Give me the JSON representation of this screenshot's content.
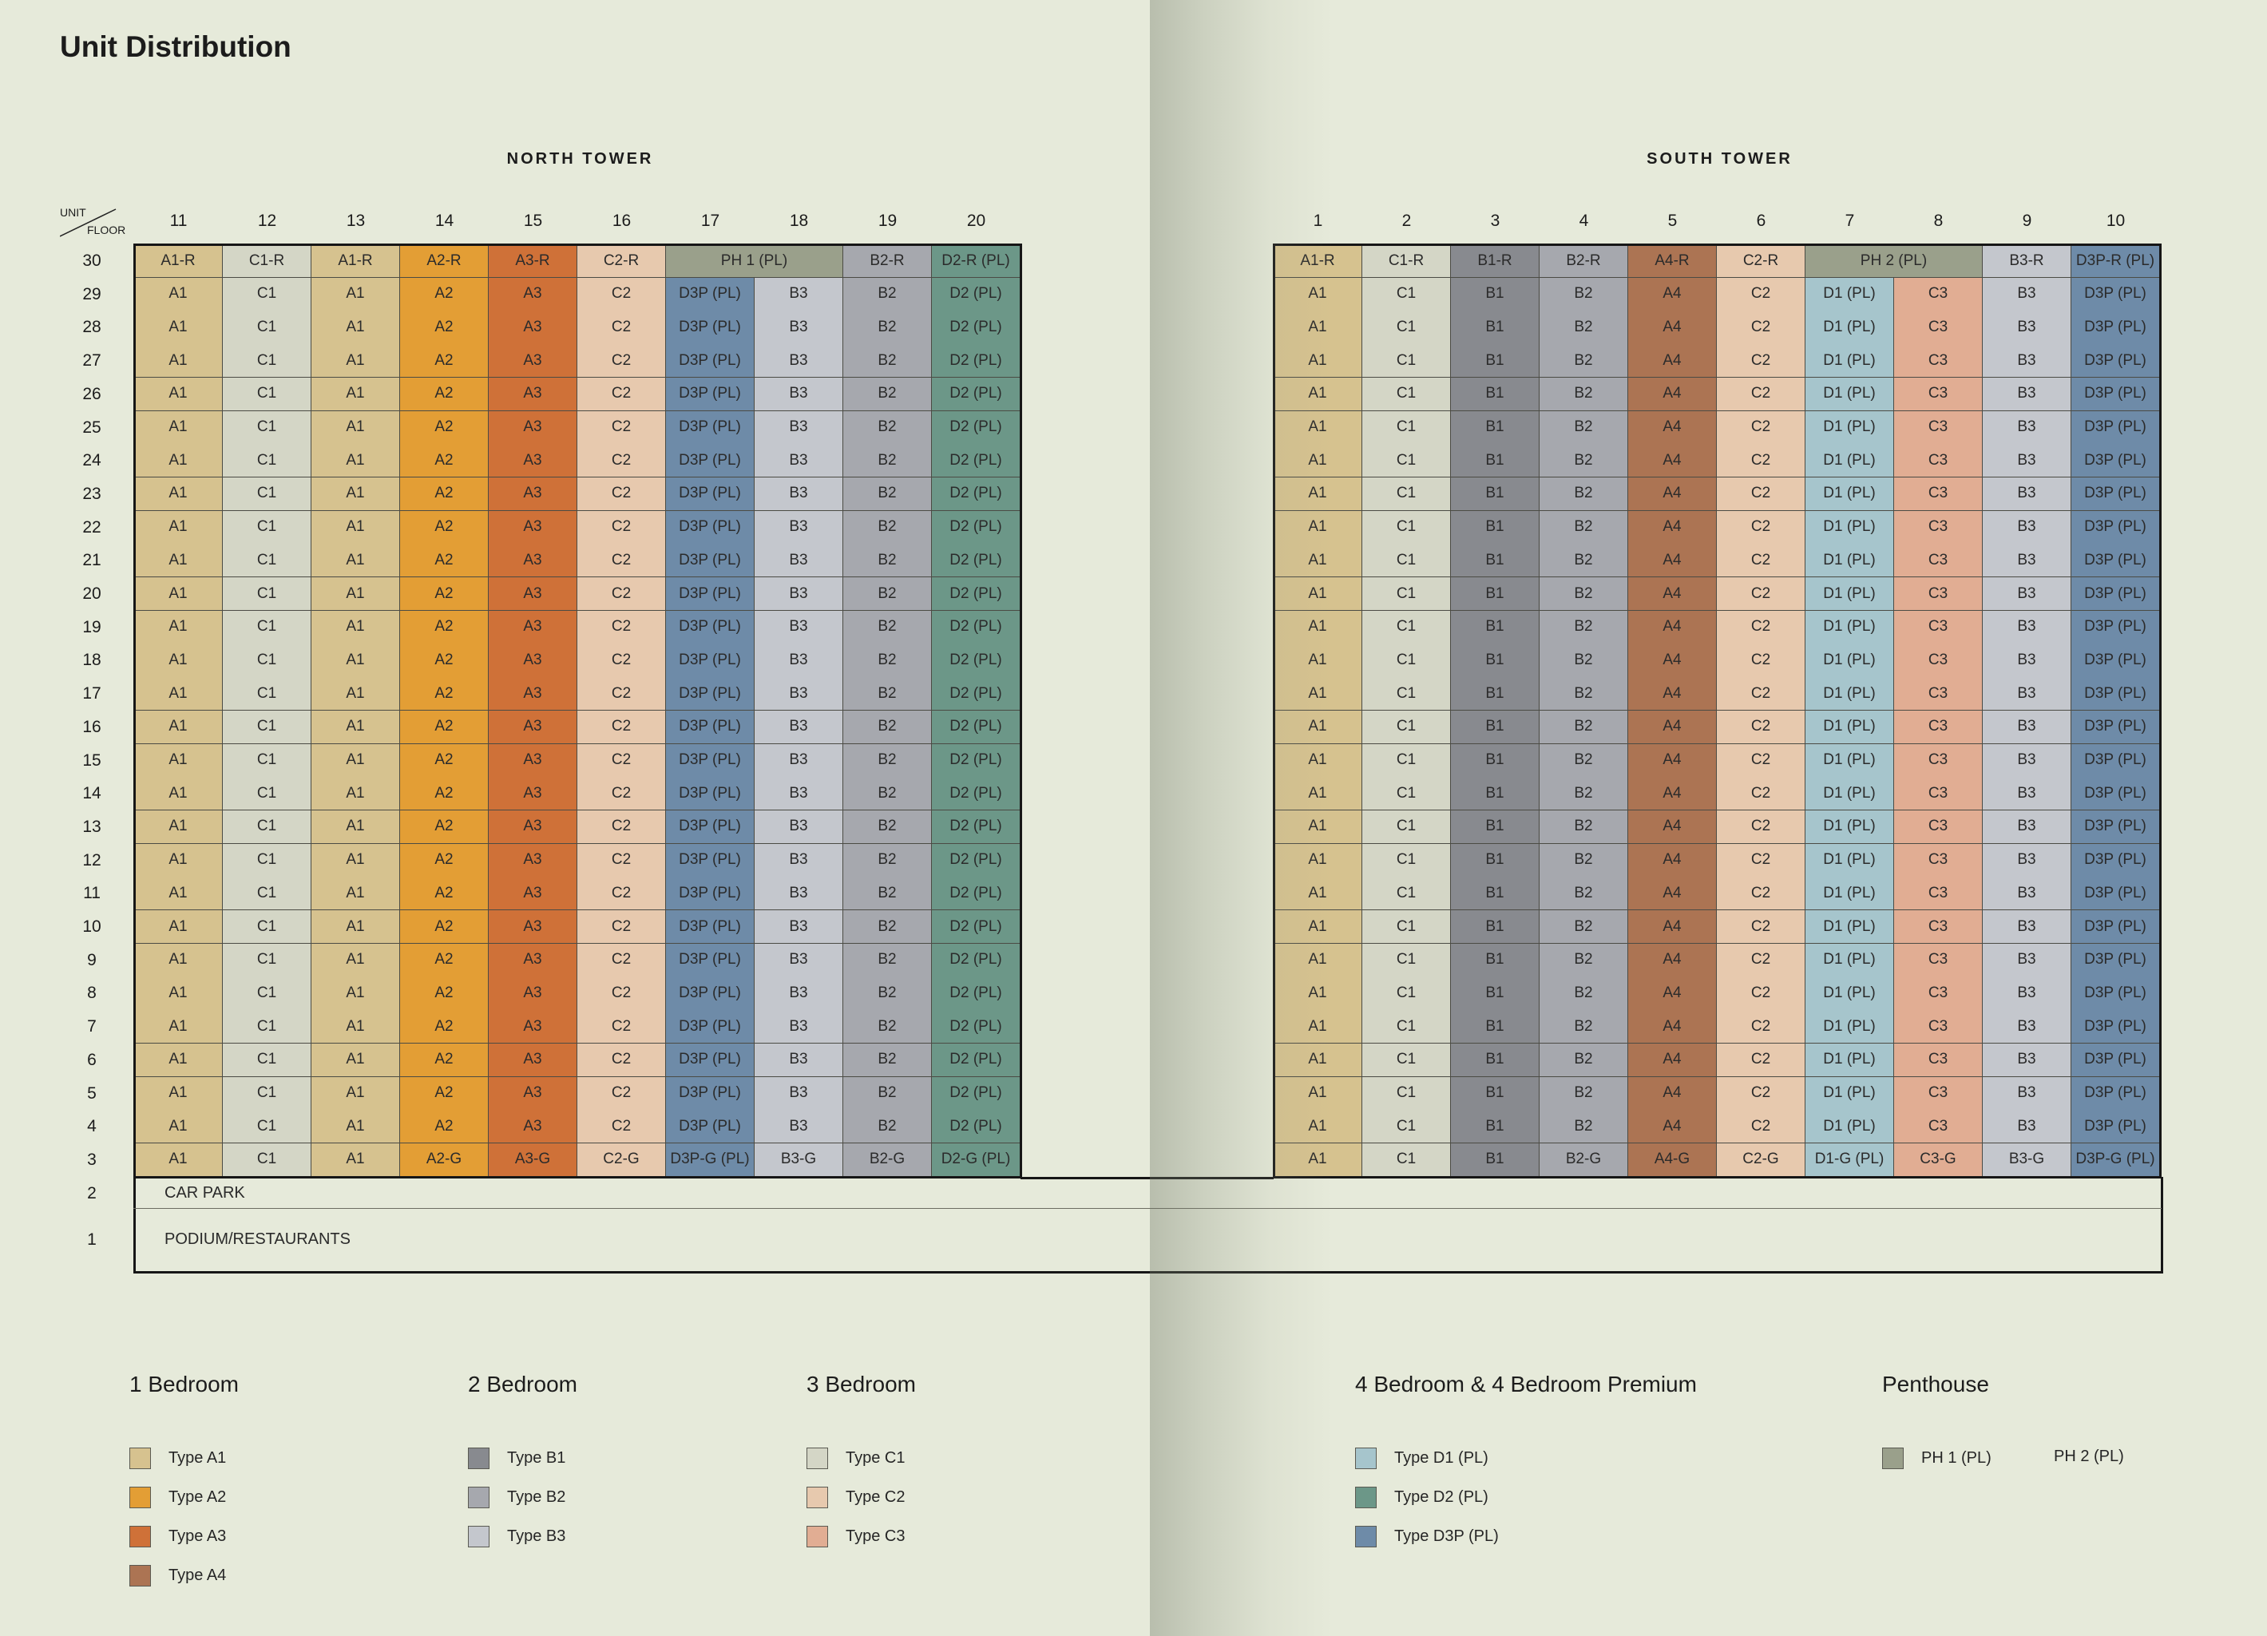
{
  "title": "Unit Distribution",
  "header": {
    "unit": "UNIT",
    "floor": "FLOOR"
  },
  "colors": {
    "A1": "#d6c28f",
    "A2": "#e39e35",
    "A3": "#cf7138",
    "A4": "#ac7453",
    "B1": "#888a8f",
    "B2": "#a6a8ae",
    "B3": "#c4c7cd",
    "C1": "#d4d6c6",
    "C2": "#e7c9ae",
    "C3": "#e1ad93",
    "D1": "#a6c5cc",
    "D2": "#6c9788",
    "D3P": "#6e8ba8",
    "PH": "#9aa08b"
  },
  "north": {
    "name": "NORTH TOWER",
    "units": [
      "11",
      "12",
      "13",
      "14",
      "15",
      "16",
      "17",
      "18",
      "19",
      "20"
    ],
    "row30": [
      {
        "text": "A1-R",
        "color": "A1",
        "span": 1
      },
      {
        "text": "C1-R",
        "color": "C1",
        "span": 1
      },
      {
        "text": "A1-R",
        "color": "A1",
        "span": 1
      },
      {
        "text": "A2-R",
        "color": "A2",
        "span": 1
      },
      {
        "text": "A3-R",
        "color": "A3",
        "span": 1
      },
      {
        "text": "C2-R",
        "color": "C2",
        "span": 1
      },
      {
        "text": "PH 1 (PL)",
        "color": "PH",
        "span": 2
      },
      {
        "text": "B2-R",
        "color": "B2",
        "span": 1
      },
      {
        "text": "D2-R (PL)",
        "color": "D2",
        "span": 1
      }
    ],
    "typical": [
      {
        "text": "A1",
        "color": "A1"
      },
      {
        "text": "C1",
        "color": "C1"
      },
      {
        "text": "A1",
        "color": "A1"
      },
      {
        "text": "A2",
        "color": "A2"
      },
      {
        "text": "A3",
        "color": "A3"
      },
      {
        "text": "C2",
        "color": "C2"
      },
      {
        "text": "D3P (PL)",
        "color": "D3P"
      },
      {
        "text": "B3",
        "color": "B3"
      },
      {
        "text": "B2",
        "color": "B2"
      },
      {
        "text": "D2 (PL)",
        "color": "D2"
      }
    ],
    "row3": [
      {
        "text": "A1",
        "color": "A1"
      },
      {
        "text": "C1",
        "color": "C1"
      },
      {
        "text": "A1",
        "color": "A1"
      },
      {
        "text": "A2-G",
        "color": "A2"
      },
      {
        "text": "A3-G",
        "color": "A3"
      },
      {
        "text": "C2-G",
        "color": "C2"
      },
      {
        "text": "D3P-G (PL)",
        "color": "D3P"
      },
      {
        "text": "B3-G",
        "color": "B3"
      },
      {
        "text": "B2-G",
        "color": "B2"
      },
      {
        "text": "D2-G (PL)",
        "color": "D2"
      }
    ]
  },
  "south": {
    "name": "SOUTH TOWER",
    "units": [
      "1",
      "2",
      "3",
      "4",
      "5",
      "6",
      "7",
      "8",
      "9",
      "10"
    ],
    "row30": [
      {
        "text": "A1-R",
        "color": "A1",
        "span": 1
      },
      {
        "text": "C1-R",
        "color": "C1",
        "span": 1
      },
      {
        "text": "B1-R",
        "color": "B1",
        "span": 1
      },
      {
        "text": "B2-R",
        "color": "B2",
        "span": 1
      },
      {
        "text": "A4-R",
        "color": "A4",
        "span": 1
      },
      {
        "text": "C2-R",
        "color": "C2",
        "span": 1
      },
      {
        "text": "PH 2 (PL)",
        "color": "PH",
        "span": 2
      },
      {
        "text": "B3-R",
        "color": "B3",
        "span": 1
      },
      {
        "text": "D3P-R (PL)",
        "color": "D3P",
        "span": 1
      }
    ],
    "typical": [
      {
        "text": "A1",
        "color": "A1"
      },
      {
        "text": "C1",
        "color": "C1"
      },
      {
        "text": "B1",
        "color": "B1"
      },
      {
        "text": "B2",
        "color": "B2"
      },
      {
        "text": "A4",
        "color": "A4"
      },
      {
        "text": "C2",
        "color": "C2"
      },
      {
        "text": "D1 (PL)",
        "color": "D1"
      },
      {
        "text": "C3",
        "color": "C3"
      },
      {
        "text": "B3",
        "color": "B3"
      },
      {
        "text": "D3P (PL)",
        "color": "D3P"
      }
    ],
    "row3": [
      {
        "text": "A1",
        "color": "A1"
      },
      {
        "text": "C1",
        "color": "C1"
      },
      {
        "text": "B1",
        "color": "B1"
      },
      {
        "text": "B2-G",
        "color": "B2"
      },
      {
        "text": "A4-G",
        "color": "A4"
      },
      {
        "text": "C2-G",
        "color": "C2"
      },
      {
        "text": "D1-G (PL)",
        "color": "D1"
      },
      {
        "text": "C3-G",
        "color": "C3"
      },
      {
        "text": "B3-G",
        "color": "B3"
      },
      {
        "text": "D3P-G (PL)",
        "color": "D3P"
      }
    ]
  },
  "floors": [
    "30",
    "29",
    "28",
    "27",
    "26",
    "25",
    "24",
    "23",
    "22",
    "21",
    "20",
    "19",
    "18",
    "17",
    "16",
    "15",
    "14",
    "13",
    "12",
    "11",
    "10",
    "9",
    "8",
    "7",
    "6",
    "5",
    "4",
    "3"
  ],
  "podium": [
    {
      "floor": "2",
      "label": "CAR PARK"
    },
    {
      "floor": "1",
      "label": "PODIUM/RESTAURANTS"
    }
  ],
  "legend": {
    "one_bed": {
      "title": "1 Bedroom",
      "items": [
        {
          "label": "Type A1",
          "color": "A1"
        },
        {
          "label": "Type A2",
          "color": "A2"
        },
        {
          "label": "Type A3",
          "color": "A3"
        },
        {
          "label": "Type A4",
          "color": "A4"
        }
      ]
    },
    "two_bed": {
      "title": "2 Bedroom",
      "items": [
        {
          "label": "Type B1",
          "color": "B1"
        },
        {
          "label": "Type B2",
          "color": "B2"
        },
        {
          "label": "Type B3",
          "color": "B3"
        }
      ]
    },
    "three_bed": {
      "title": "3 Bedroom",
      "items": [
        {
          "label": "Type C1",
          "color": "C1"
        },
        {
          "label": "Type C2",
          "color": "C2"
        },
        {
          "label": "Type C3",
          "color": "C3"
        }
      ]
    },
    "four_bed": {
      "title": "4 Bedroom & 4 Bedroom Premium",
      "items": [
        {
          "label": "Type D1 (PL)",
          "color": "D1"
        },
        {
          "label": "Type D2 (PL)",
          "color": "D2"
        },
        {
          "label": "Type D3P (PL)",
          "color": "D3P"
        }
      ]
    },
    "penthouse": {
      "title": "Penthouse",
      "items": [
        {
          "label": "PH 1 (PL)",
          "color": "PH"
        }
      ],
      "extra": "PH 2 (PL)"
    }
  }
}
